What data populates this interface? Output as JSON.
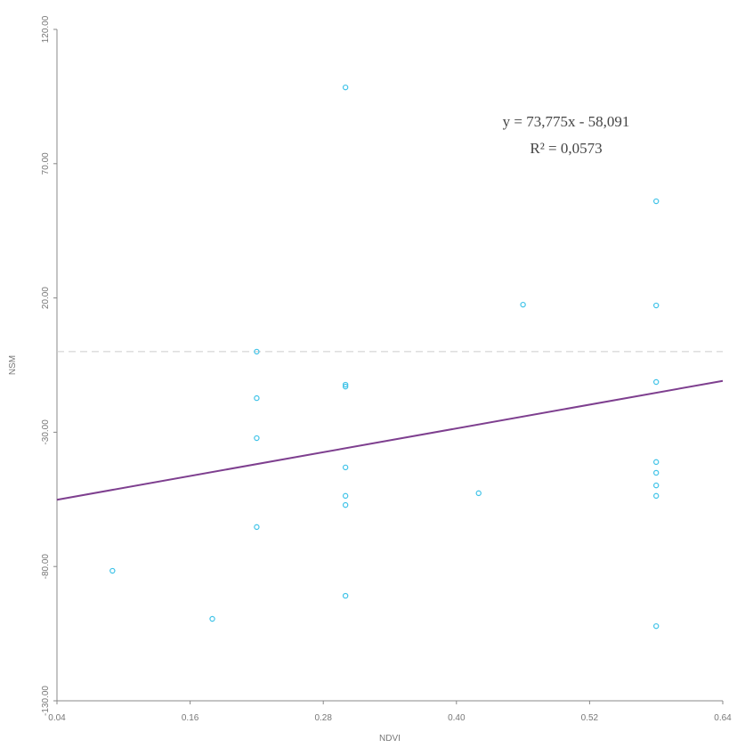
{
  "chart_data": {
    "type": "scatter",
    "x_label": "NDVI",
    "y_label": "NSM",
    "x": [
      0.3,
      0.58,
      0.46,
      0.58,
      0.22,
      0.22,
      0.3,
      0.3,
      0.58,
      0.22,
      0.3,
      0.58,
      0.58,
      0.58,
      0.58,
      0.3,
      0.3,
      0.42,
      0.22,
      0.09,
      0.18,
      0.3,
      0.58
    ],
    "series": [
      {
        "name": "NSM",
        "color": "#3fc3e8",
        "values": [
          98.4,
          56.0,
          17.5,
          17.2,
          0.0,
          -17.3,
          -12.3,
          -13.0,
          -11.3,
          -32.2,
          -43.1,
          -41.1,
          -45.1,
          -49.8,
          -53.7,
          -53.7,
          -57.1,
          -52.7,
          -65.3,
          -81.6,
          -99.5,
          -90.9,
          -102.2
        ]
      }
    ],
    "trendline": {
      "color": "#7e3f8f",
      "slope": 73.775,
      "intercept": -58.091,
      "equation": "y = 73,775x - 58,091",
      "r2": "R² = 0,0573"
    },
    "zero_line": true,
    "xlim": [
      0.04,
      0.64
    ],
    "xticks": [
      0.04,
      0.16,
      0.28,
      {
        "value": 0.4,
        "label": "0.40"
      },
      0.52,
      0.64
    ],
    "ylim": [
      -130,
      120
    ],
    "yticks": [
      {
        "value": 120,
        "label": "120.00"
      },
      {
        "value": 70,
        "label": "70.00"
      },
      {
        "value": 20,
        "label": "20.00"
      },
      {
        "value": -30,
        "label": "-30.00"
      },
      {
        "value": -80,
        "label": "-80.00"
      },
      {
        "value": -130,
        "label": "-130.00"
      }
    ]
  }
}
